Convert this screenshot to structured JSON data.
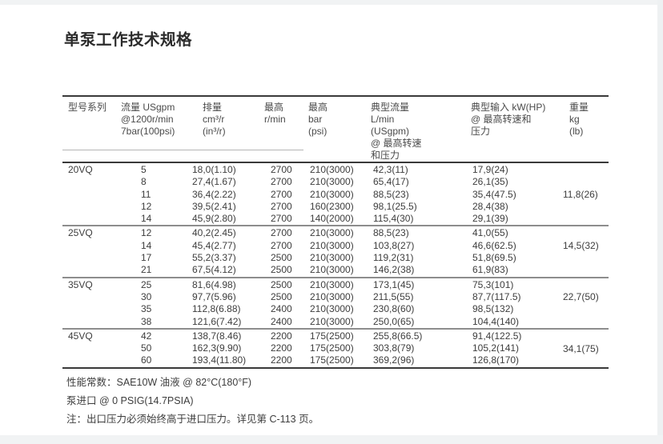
{
  "page": {
    "title": "单泵工作技术规格"
  },
  "colors": {
    "text": "#3d3d3d",
    "heavy_rule": "#3a3a3a",
    "section_rule": "#8d8d8d",
    "background": "#ffffff"
  },
  "table": {
    "headers": [
      {
        "lines": [
          "型号系列"
        ]
      },
      {
        "lines": [
          "流量 USgpm",
          "@1200r/min",
          "7bar(100psi)"
        ]
      },
      {
        "lines": [
          "排量",
          "cm³/r",
          "(in³/r)"
        ]
      },
      {
        "lines": [
          "最高",
          "r/min"
        ]
      },
      {
        "lines": [
          "最高",
          "bar",
          "(psi)"
        ]
      },
      {
        "lines": [
          "典型流量",
          "L/min",
          "(USgpm)",
          "@ 最高转速",
          "和压力"
        ]
      },
      {
        "lines": [
          "典型输入 kW(HP)",
          "@ 最高转速和",
          "压力"
        ]
      },
      {
        "lines": [
          "重量",
          "kg",
          "(lb)"
        ]
      }
    ],
    "sections": [
      {
        "model": "20VQ",
        "weight": "11,8(26)",
        "rows": [
          {
            "flow": "5",
            "displacement": "18,0(1.10)",
            "max_rpm": "2700",
            "max_bar": "210(3000)",
            "typical_flow": "42,3(11)",
            "typical_input": "17,9(24)"
          },
          {
            "flow": "8",
            "displacement": "27,4(1.67)",
            "max_rpm": "2700",
            "max_bar": "210(3000)",
            "typical_flow": "65,4(17)",
            "typical_input": "26,1(35)"
          },
          {
            "flow": "11",
            "displacement": "36,4(2.22)",
            "max_rpm": "2700",
            "max_bar": "210(3000)",
            "typical_flow": "88,5(23)",
            "typical_input": "35,4(47.5)"
          },
          {
            "flow": "12",
            "displacement": "39,5(2.41)",
            "max_rpm": "2700",
            "max_bar": "160(2300)",
            "typical_flow": "98,1(25.5)",
            "typical_input": "28,4(38)"
          },
          {
            "flow": "14",
            "displacement": "45,9(2.80)",
            "max_rpm": "2700",
            "max_bar": "140(2000)",
            "typical_flow": "115,4(30)",
            "typical_input": "29,1(39)"
          }
        ]
      },
      {
        "model": "25VQ",
        "weight": "14,5(32)",
        "rows": [
          {
            "flow": "12",
            "displacement": "40,2(2.45)",
            "max_rpm": "2700",
            "max_bar": "210(3000)",
            "typical_flow": "88,5(23)",
            "typical_input": "41,0(55)"
          },
          {
            "flow": "14",
            "displacement": "45,4(2.77)",
            "max_rpm": "2700",
            "max_bar": "210(3000)",
            "typical_flow": "103,8(27)",
            "typical_input": "46,6(62.5)"
          },
          {
            "flow": "17",
            "displacement": "55,2(3.37)",
            "max_rpm": "2500",
            "max_bar": "210(3000)",
            "typical_flow": "119,2(31)",
            "typical_input": "51,8(69.5)"
          },
          {
            "flow": "21",
            "displacement": "67,5(4.12)",
            "max_rpm": "2500",
            "max_bar": "210(3000)",
            "typical_flow": "146,2(38)",
            "typical_input": "61,9(83)"
          }
        ]
      },
      {
        "model": "35VQ",
        "weight": "22,7(50)",
        "rows": [
          {
            "flow": "25",
            "displacement": "81,6(4.98)",
            "max_rpm": "2500",
            "max_bar": "210(3000)",
            "typical_flow": "173,1(45)",
            "typical_input": "75,3(101)"
          },
          {
            "flow": "30",
            "displacement": "97,7(5.96)",
            "max_rpm": "2500",
            "max_bar": "210(3000)",
            "typical_flow": "211,5(55)",
            "typical_input": "87,7(117.5)"
          },
          {
            "flow": "35",
            "displacement": "112,8(6.88)",
            "max_rpm": "2400",
            "max_bar": "210(3000)",
            "typical_flow": "230,8(60)",
            "typical_input": "98,5(132)"
          },
          {
            "flow": "38",
            "displacement": "121,6(7.42)",
            "max_rpm": "2400",
            "max_bar": "210(3000)",
            "typical_flow": "250,0(65)",
            "typical_input": "104,4(140)"
          }
        ]
      },
      {
        "model": "45VQ",
        "weight": "34,1(75)",
        "rows": [
          {
            "flow": "42",
            "displacement": "138,7(8.46)",
            "max_rpm": "2200",
            "max_bar": "175(2500)",
            "typical_flow": "255,8(66.5)",
            "typical_input": "91,4(122.5)"
          },
          {
            "flow": "50",
            "displacement": "162,3(9.90)",
            "max_rpm": "2200",
            "max_bar": "175(2500)",
            "typical_flow": "303,8(79)",
            "typical_input": "105,2(141)"
          },
          {
            "flow": "60",
            "displacement": "193,4(11.80)",
            "max_rpm": "2200",
            "max_bar": "175(2500)",
            "typical_flow": "369,2(96)",
            "typical_input": "126,8(170)"
          }
        ]
      }
    ]
  },
  "notes": [
    "性能常数：SAE10W 油液 @ 82°C(180°F)",
    "泵进口 @ 0 PSIG(14.7PSIA)",
    "注：出口压力必须始终高于进口压力。详见第 C-113 页。"
  ]
}
